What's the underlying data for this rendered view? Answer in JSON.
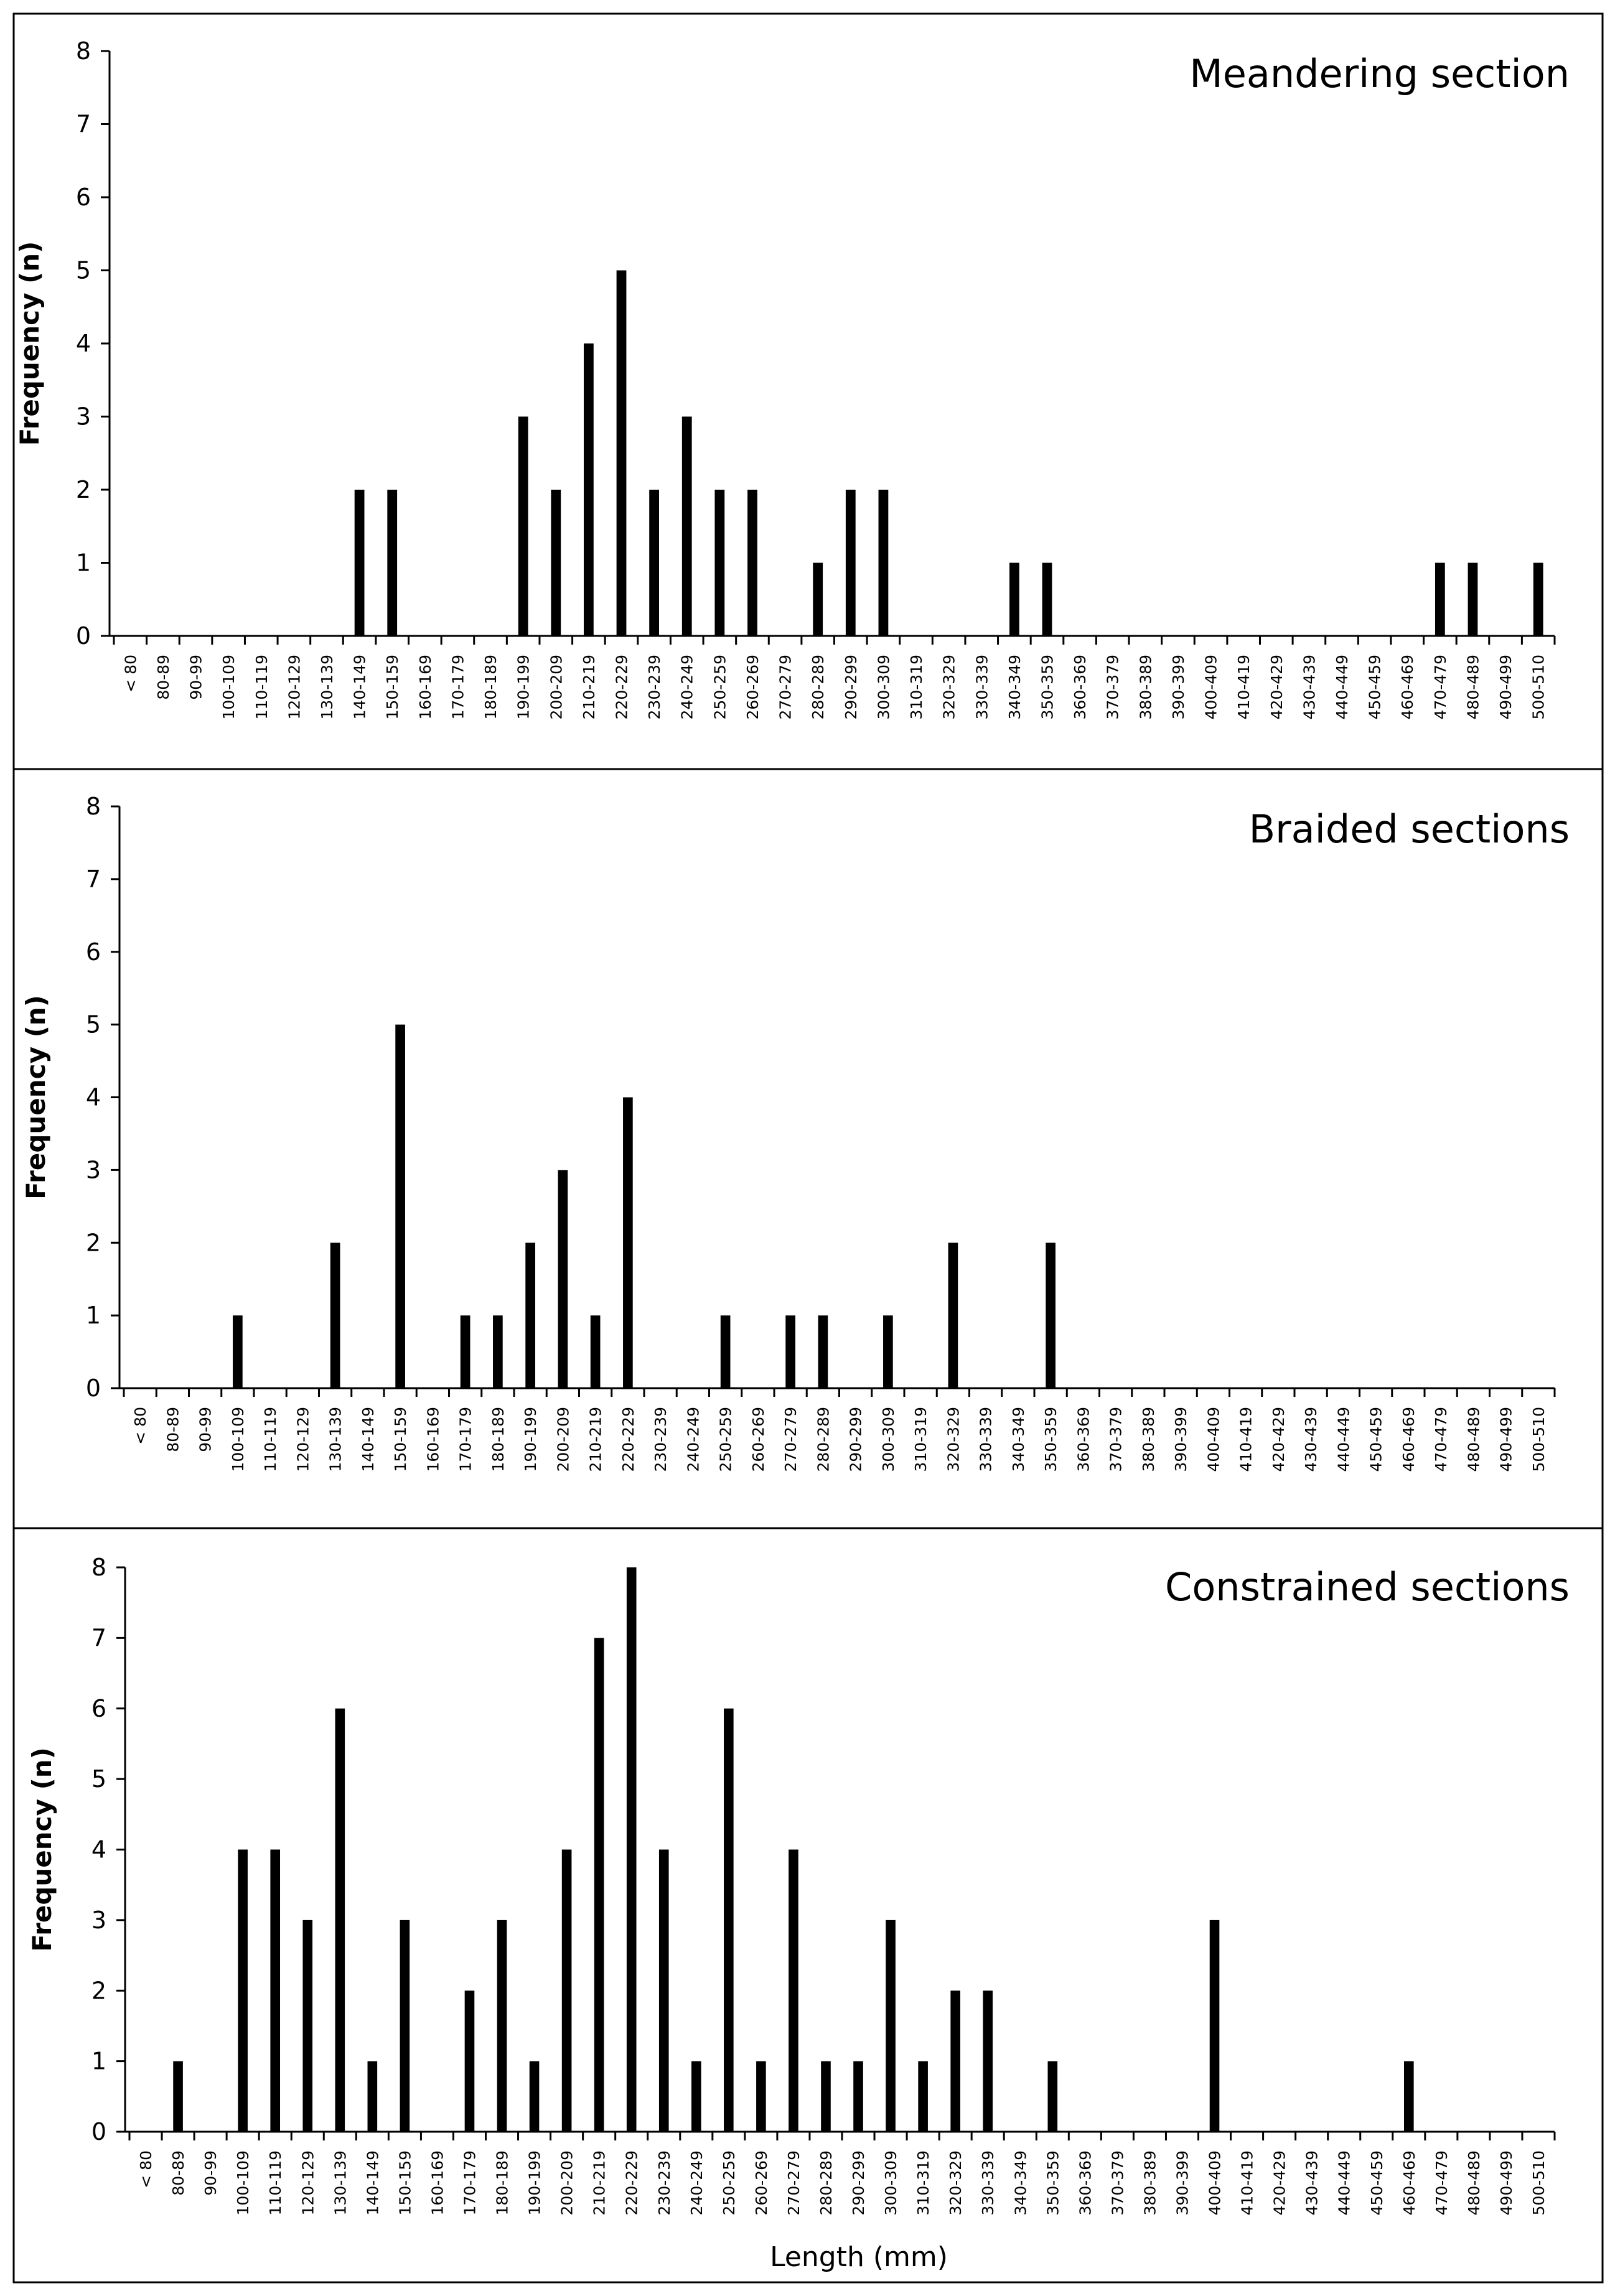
{
  "chart_data": [
    {
      "type": "bar",
      "title": "Meandering section",
      "xlabel": "",
      "ylabel": "Frequency (n)",
      "ylim": [
        0,
        8
      ],
      "yticks": [
        "0",
        "1",
        "2",
        "3",
        "4",
        "5",
        "6",
        "7",
        "8"
      ],
      "categories": [
        "< 80",
        "80-89",
        "90-99",
        "100-109",
        "110-119",
        "120-129",
        "130-139",
        "140-149",
        "150-159",
        "160-169",
        "170-179",
        "180-189",
        "190-199",
        "200-209",
        "210-219",
        "220-229",
        "230-239",
        "240-249",
        "250-259",
        "260-269",
        "270-279",
        "280-289",
        "290-299",
        "300-309",
        "310-319",
        "320-329",
        "330-339",
        "340-349",
        "350-359",
        "360-369",
        "370-379",
        "380-389",
        "390-399",
        "400-409",
        "410-419",
        "420-429",
        "430-439",
        "440-449",
        "450-459",
        "460-469",
        "470-479",
        "480-489",
        "490-499",
        "500-510"
      ],
      "values": [
        0,
        0,
        0,
        0,
        0,
        0,
        0,
        2,
        2,
        0,
        0,
        0,
        3,
        2,
        4,
        5,
        2,
        3,
        2,
        2,
        0,
        1,
        2,
        2,
        0,
        0,
        0,
        1,
        1,
        0,
        0,
        0,
        0,
        0,
        0,
        0,
        0,
        0,
        0,
        0,
        1,
        1,
        0,
        1
      ]
    },
    {
      "type": "bar",
      "title": "Braided sections",
      "xlabel": "",
      "ylabel": "Frequency (n)",
      "ylim": [
        0,
        8
      ],
      "yticks": [
        "0",
        "1",
        "2",
        "3",
        "4",
        "5",
        "6",
        "7",
        "8"
      ],
      "categories": [
        "< 80",
        "80-89",
        "90-99",
        "100-109",
        "110-119",
        "120-129",
        "130-139",
        "140-149",
        "150-159",
        "160-169",
        "170-179",
        "180-189",
        "190-199",
        "200-209",
        "210-219",
        "220-229",
        "230-239",
        "240-249",
        "250-259",
        "260-269",
        "270-279",
        "280-289",
        "290-299",
        "300-309",
        "310-319",
        "320-329",
        "330-339",
        "340-349",
        "350-359",
        "360-369",
        "370-379",
        "380-389",
        "390-399",
        "400-409",
        "410-419",
        "420-429",
        "430-439",
        "440-449",
        "450-459",
        "460-469",
        "470-479",
        "480-489",
        "490-499",
        "500-510"
      ],
      "values": [
        0,
        0,
        0,
        1,
        0,
        0,
        2,
        0,
        5,
        0,
        1,
        1,
        2,
        3,
        1,
        4,
        0,
        0,
        1,
        0,
        1,
        1,
        0,
        1,
        0,
        2,
        0,
        0,
        2,
        0,
        0,
        0,
        0,
        0,
        0,
        0,
        0,
        0,
        0,
        0,
        0,
        0,
        0,
        0
      ]
    },
    {
      "type": "bar",
      "title": "Constrained sections",
      "xlabel": "Length (mm)",
      "ylabel": "Frequency (n)",
      "ylim": [
        0,
        8
      ],
      "yticks": [
        "0",
        "1",
        "2",
        "3",
        "4",
        "5",
        "6",
        "7",
        "8"
      ],
      "categories": [
        "< 80",
        "80-89",
        "90-99",
        "100-109",
        "110-119",
        "120-129",
        "130-139",
        "140-149",
        "150-159",
        "160-169",
        "170-179",
        "180-189",
        "190-199",
        "200-209",
        "210-219",
        "220-229",
        "230-239",
        "240-249",
        "250-259",
        "260-269",
        "270-279",
        "280-289",
        "290-299",
        "300-309",
        "310-319",
        "320-329",
        "330-339",
        "340-349",
        "350-359",
        "360-369",
        "370-379",
        "380-389",
        "390-399",
        "400-409",
        "410-419",
        "420-429",
        "430-439",
        "440-449",
        "450-459",
        "460-469",
        "470-479",
        "480-489",
        "490-499",
        "500-510"
      ],
      "values": [
        0,
        1,
        0,
        4,
        4,
        3,
        6,
        1,
        3,
        0,
        2,
        3,
        1,
        4,
        7,
        8,
        4,
        1,
        6,
        1,
        4,
        1,
        1,
        3,
        1,
        2,
        2,
        0,
        1,
        0,
        0,
        0,
        0,
        3,
        0,
        0,
        0,
        0,
        0,
        1,
        0,
        0,
        0,
        0
      ]
    }
  ]
}
